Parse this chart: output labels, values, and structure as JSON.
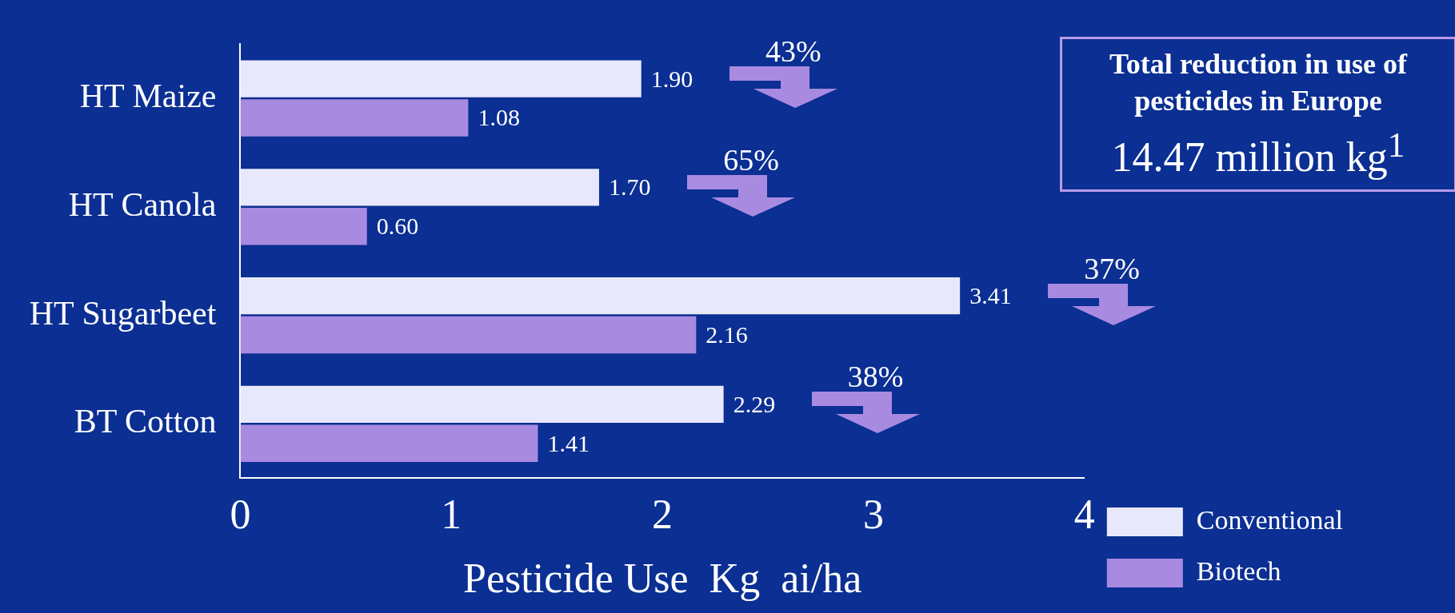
{
  "chart_data": {
    "type": "bar",
    "orientation": "horizontal",
    "categories": [
      "HT Maize",
      "HT Canola",
      "HT Sugarbeet",
      "BT Cotton"
    ],
    "series": [
      {
        "name": "Conventional",
        "color": "#e8e8fc",
        "values": [
          1.9,
          1.7,
          3.41,
          2.29
        ],
        "value_labels": [
          "1.90",
          "1.70",
          "3.41",
          "2.29"
        ]
      },
      {
        "name": "Biotech",
        "color": "#a88ae0",
        "values": [
          1.08,
          0.6,
          2.16,
          1.41
        ],
        "value_labels": [
          "1.08",
          "0.60",
          "2.16",
          "1.41"
        ]
      }
    ],
    "xlim": [
      0,
      4
    ],
    "xticks": [
      0,
      1,
      2,
      3,
      4
    ],
    "xlabel": "Pesticide Use  Kg  ai/ha",
    "grid": false,
    "legend": "right",
    "annotations": [
      "43%",
      "65%",
      "37%",
      "38%",
      "Total reduction in use of pesticides in Europe",
      "14.47 million kg$^{1}$"
    ]
  }
}
